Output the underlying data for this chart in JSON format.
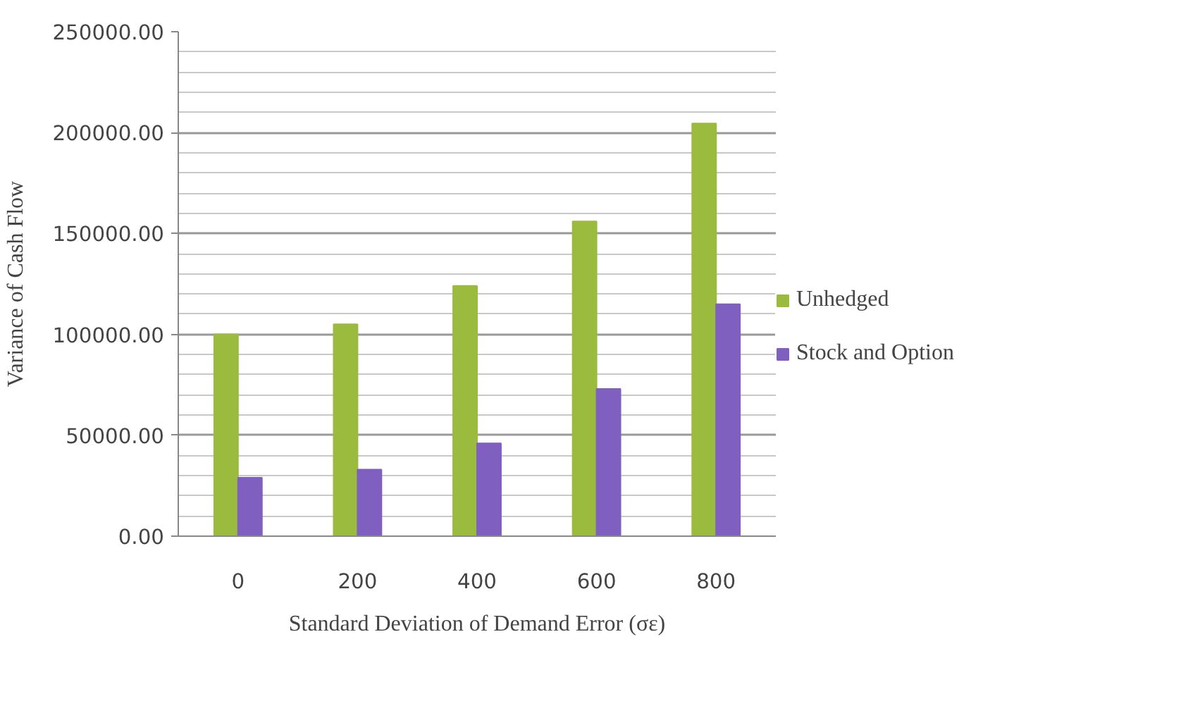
{
  "chart_data": {
    "type": "bar",
    "xlabel": "Standard Deviation of Demand Error (σε)",
    "ylabel": "Variance of Cash Flow",
    "categories": [
      "0",
      "200",
      "400",
      "600",
      "800"
    ],
    "series": [
      {
        "name": "Unhedged",
        "color": "#9bbb3f",
        "values": [
          100000,
          105000,
          124000,
          156000,
          204500
        ]
      },
      {
        "name": "Stock and Option",
        "color": "#7f5fbf",
        "values": [
          29000,
          33000,
          46000,
          73000,
          115000
        ]
      }
    ],
    "ylim": [
      0,
      250000
    ],
    "yticks": [
      {
        "value": 0,
        "label": "0.00"
      },
      {
        "value": 50000,
        "label": "50000.00"
      },
      {
        "value": 100000,
        "label": "100000.00"
      },
      {
        "value": 150000,
        "label": "150000.00"
      },
      {
        "value": 200000,
        "label": "200000.00"
      },
      {
        "value": 250000,
        "label": "250000.00"
      }
    ],
    "grid": "y",
    "legend": "right"
  }
}
